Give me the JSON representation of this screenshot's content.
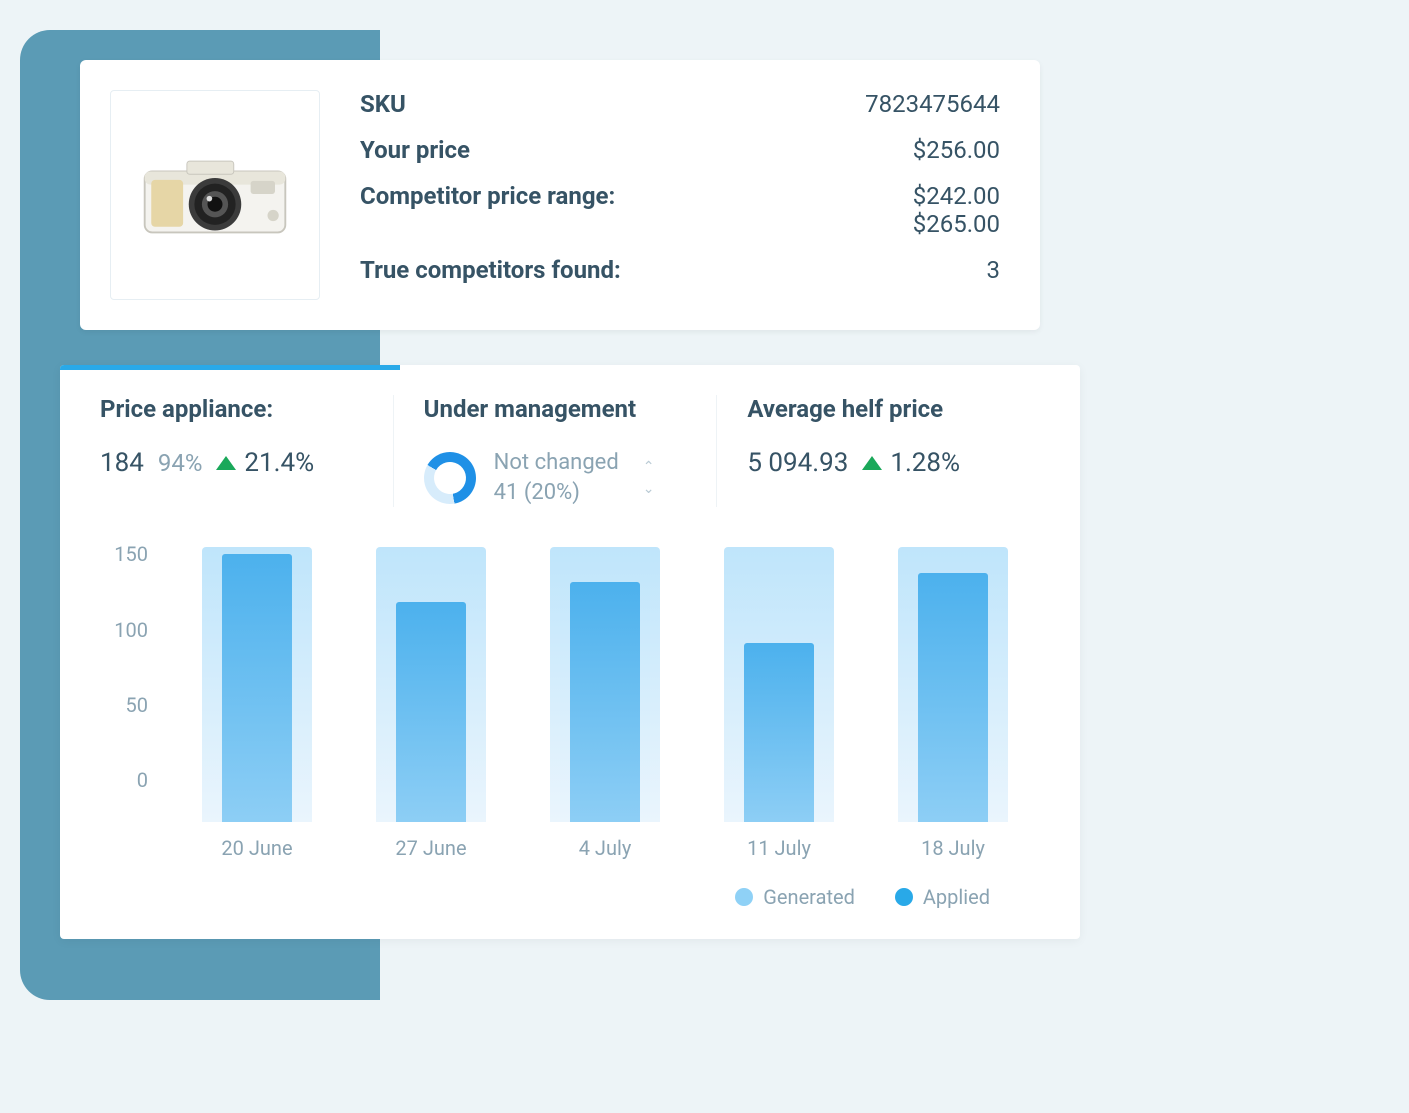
{
  "product": {
    "sku_label": "SKU",
    "sku_value": "7823475644",
    "your_price_label": "Your price",
    "your_price_value": "$256.00",
    "comp_range_label": "Competitor price range:",
    "comp_range_low": "$242.00",
    "comp_range_high": "$265.00",
    "true_comp_label": "True competitors found:",
    "true_comp_value": "3"
  },
  "metrics": {
    "price_appliance": {
      "title": "Price appliance:",
      "value": "184",
      "percent": "94%",
      "trend": "21.4%",
      "trend_color": "#1aa85a"
    },
    "under_management": {
      "title": "Under management",
      "status_line1": "Not changed",
      "status_line2": "41 (20%)",
      "donut_filled_deg": 230,
      "donut_fill_color": "#1f90e6",
      "donut_track_color": "#d7ecfb"
    },
    "avg_helf": {
      "title": "Average helf price",
      "value": "5 094.93",
      "trend": "1.28%",
      "trend_color": "#1aa85a"
    }
  },
  "chart": {
    "type": "bar",
    "y_ticks": [
      "150",
      "100",
      "50",
      "0"
    ],
    "y_max": 175,
    "categories": [
      "20 June",
      "27 June",
      "4 July",
      "11 July",
      "18 July"
    ],
    "generated_values": [
      172,
      172,
      172,
      172,
      172
    ],
    "applied_values": [
      168,
      138,
      150,
      112,
      156
    ],
    "generated_color": "#8fd1f6",
    "applied_color": "#29a9e8",
    "bar_outer_gradient_top": "#bfe5fb",
    "bar_outer_gradient_bottom": "#eaf5fd",
    "bar_inner_gradient_top": "#4cb1ed",
    "bar_inner_gradient_bottom": "#8dcef5",
    "axis_text_color": "#8aa3b2",
    "legend": {
      "generated": "Generated",
      "applied": "Applied"
    }
  },
  "colors": {
    "page_bg": "#edf4f7",
    "card_bg": "#ffffff",
    "stripe": "#5b9bb5",
    "accent": "#29a9e8",
    "text_primary": "#365365",
    "text_muted": "#8aa3b2",
    "trend_up": "#1aa85a"
  }
}
